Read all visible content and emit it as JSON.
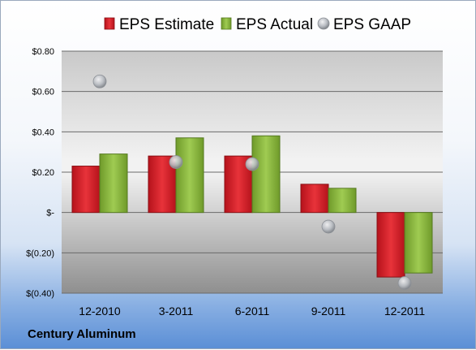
{
  "chart_data": {
    "type": "bar",
    "categories": [
      "12-2010",
      "3-2011",
      "6-2011",
      "9-2011",
      "12-2011"
    ],
    "series": [
      {
        "name": "EPS Estimate",
        "kind": "bar",
        "color": "#d9262c",
        "values": [
          0.23,
          0.28,
          0.28,
          0.14,
          -0.32
        ]
      },
      {
        "name": "EPS Actual",
        "kind": "bar",
        "color": "#8db841",
        "values": [
          0.29,
          0.37,
          0.38,
          0.12,
          -0.3
        ]
      },
      {
        "name": "EPS GAAP",
        "kind": "marker",
        "color": "#b8bcc2",
        "values": [
          0.65,
          0.25,
          0.24,
          -0.07,
          -0.35
        ]
      }
    ],
    "ylim": [
      -0.4,
      0.8
    ],
    "yticks": [
      {
        "value": 0.8,
        "label": "$0.80"
      },
      {
        "value": 0.6,
        "label": "$0.60"
      },
      {
        "value": 0.4,
        "label": "$0.40"
      },
      {
        "value": 0.2,
        "label": "$0.20"
      },
      {
        "value": 0.0,
        "label": "$-"
      },
      {
        "value": -0.2,
        "label": "$(0.20)"
      },
      {
        "value": -0.4,
        "label": "$(0.40)"
      }
    ],
    "grid": true,
    "legend_position": "top"
  },
  "footer": {
    "company": "Century Aluminum"
  }
}
